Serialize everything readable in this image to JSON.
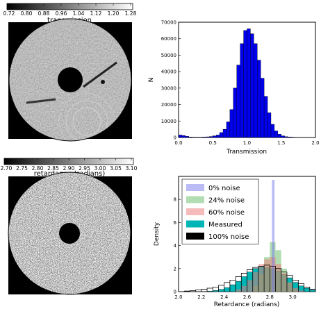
{
  "figure": {
    "colorbars": [
      {
        "label": "transmission",
        "ticks": [
          "0.72",
          "0.80",
          "0.88",
          "0.96",
          "1.04",
          "1.12",
          "1.20",
          "1.28"
        ]
      },
      {
        "label": "retardance (radians)",
        "ticks": [
          "2.70",
          "2.75",
          "2.80",
          "2.85",
          "2.90",
          "2.95",
          "3.00",
          "3.05",
          "3.10"
        ]
      }
    ],
    "images": [
      {
        "description": "grayscale transmission map of annular disk with central hole"
      },
      {
        "description": "grayscale retardance map of annular disk with central hole"
      }
    ]
  },
  "chart_data": [
    {
      "type": "bar",
      "title": "",
      "xlabel": "Transmission",
      "ylabel": "N",
      "xlim": [
        0.0,
        2.0
      ],
      "ylim": [
        0,
        70000
      ],
      "xticks": [
        "0.0",
        "0.5",
        "1.0",
        "1.5",
        "2.0"
      ],
      "yticks": [
        "0",
        "10000",
        "20000",
        "30000",
        "40000",
        "50000",
        "60000",
        "70000"
      ],
      "bin_width": 0.05,
      "x": [
        0.0,
        0.05,
        0.1,
        0.15,
        0.2,
        0.25,
        0.3,
        0.35,
        0.4,
        0.45,
        0.5,
        0.55,
        0.6,
        0.65,
        0.7,
        0.75,
        0.8,
        0.85,
        0.9,
        0.95,
        1.0,
        1.05,
        1.1,
        1.15,
        1.2,
        1.25,
        1.3,
        1.35,
        1.4,
        1.45,
        1.5,
        1.55,
        1.6,
        1.65,
        1.7,
        1.75,
        1.8,
        1.85,
        1.9,
        1.95
      ],
      "values": [
        1500,
        1200,
        700,
        300,
        200,
        200,
        200,
        300,
        400,
        600,
        1000,
        1500,
        3000,
        5000,
        9500,
        17000,
        30000,
        44000,
        57000,
        65000,
        66000,
        63000,
        57000,
        47000,
        36000,
        25000,
        15000,
        8000,
        4000,
        2000,
        1000,
        500,
        300,
        200,
        100,
        100,
        50,
        50,
        20,
        20
      ],
      "color": "#0000ee",
      "grid": false
    },
    {
      "type": "bar",
      "title": "",
      "xlabel": "Retardance (radians)",
      "ylabel": "Density",
      "xlim": [
        2.0,
        3.2
      ],
      "ylim": [
        0,
        10
      ],
      "xticks": [
        "2.0",
        "2.2",
        "2.4",
        "2.6",
        "2.8",
        "3.0"
      ],
      "yticks": [
        "0",
        "2",
        "4",
        "6",
        "8"
      ],
      "bin_width": 0.05,
      "legend_position": "top-left",
      "series": [
        {
          "name": "Measured",
          "color": "#00b5b5",
          "x": [
            2.25,
            2.3,
            2.35,
            2.4,
            2.45,
            2.5,
            2.55,
            2.6,
            2.65,
            2.7,
            2.75,
            2.8,
            2.85,
            2.9,
            2.95,
            3.0,
            3.05,
            3.1,
            3.15
          ],
          "values": [
            0.05,
            0.1,
            0.2,
            0.35,
            0.6,
            0.9,
            1.3,
            1.7,
            2.0,
            2.2,
            2.1,
            2.0,
            1.8,
            1.5,
            1.2,
            0.8,
            0.5,
            0.3,
            0.15
          ]
        },
        {
          "name": "0% noise",
          "color": "#7777ee",
          "x": [
            2.83
          ],
          "values": [
            9.7
          ]
        },
        {
          "name": "24% noise",
          "color": "#66bb66",
          "x": [
            2.65,
            2.7,
            2.75,
            2.8,
            2.85,
            2.9,
            2.95,
            3.0
          ],
          "values": [
            0.5,
            1.5,
            3.0,
            4.3,
            3.6,
            2.0,
            0.8,
            0.2
          ]
        },
        {
          "name": "60% noise",
          "color": "#ee7777",
          "x": [
            2.5,
            2.55,
            2.6,
            2.65,
            2.7,
            2.75,
            2.8,
            2.85,
            2.9,
            2.95,
            3.0,
            3.05
          ],
          "values": [
            0.2,
            0.5,
            1.0,
            1.7,
            2.4,
            2.8,
            3.0,
            2.4,
            1.6,
            0.8,
            0.3,
            0.1
          ]
        },
        {
          "name": "100% noise",
          "color": "#000000",
          "x": [
            2.05,
            2.1,
            2.15,
            2.2,
            2.25,
            2.3,
            2.35,
            2.4,
            2.45,
            2.5,
            2.55,
            2.6,
            2.65,
            2.7,
            2.75,
            2.8,
            2.85,
            2.9,
            2.95,
            3.0,
            3.05,
            3.1,
            3.15
          ],
          "values": [
            0.05,
            0.1,
            0.15,
            0.2,
            0.3,
            0.4,
            0.55,
            0.8,
            1.0,
            1.3,
            1.6,
            1.9,
            2.1,
            2.2,
            2.3,
            2.2,
            2.0,
            1.7,
            1.4,
            1.0,
            0.7,
            0.4,
            0.2
          ]
        }
      ],
      "legend_order": [
        "0% noise",
        "24% noise",
        "60% noise",
        "Measured",
        "100% noise"
      ],
      "grid": false
    }
  ]
}
